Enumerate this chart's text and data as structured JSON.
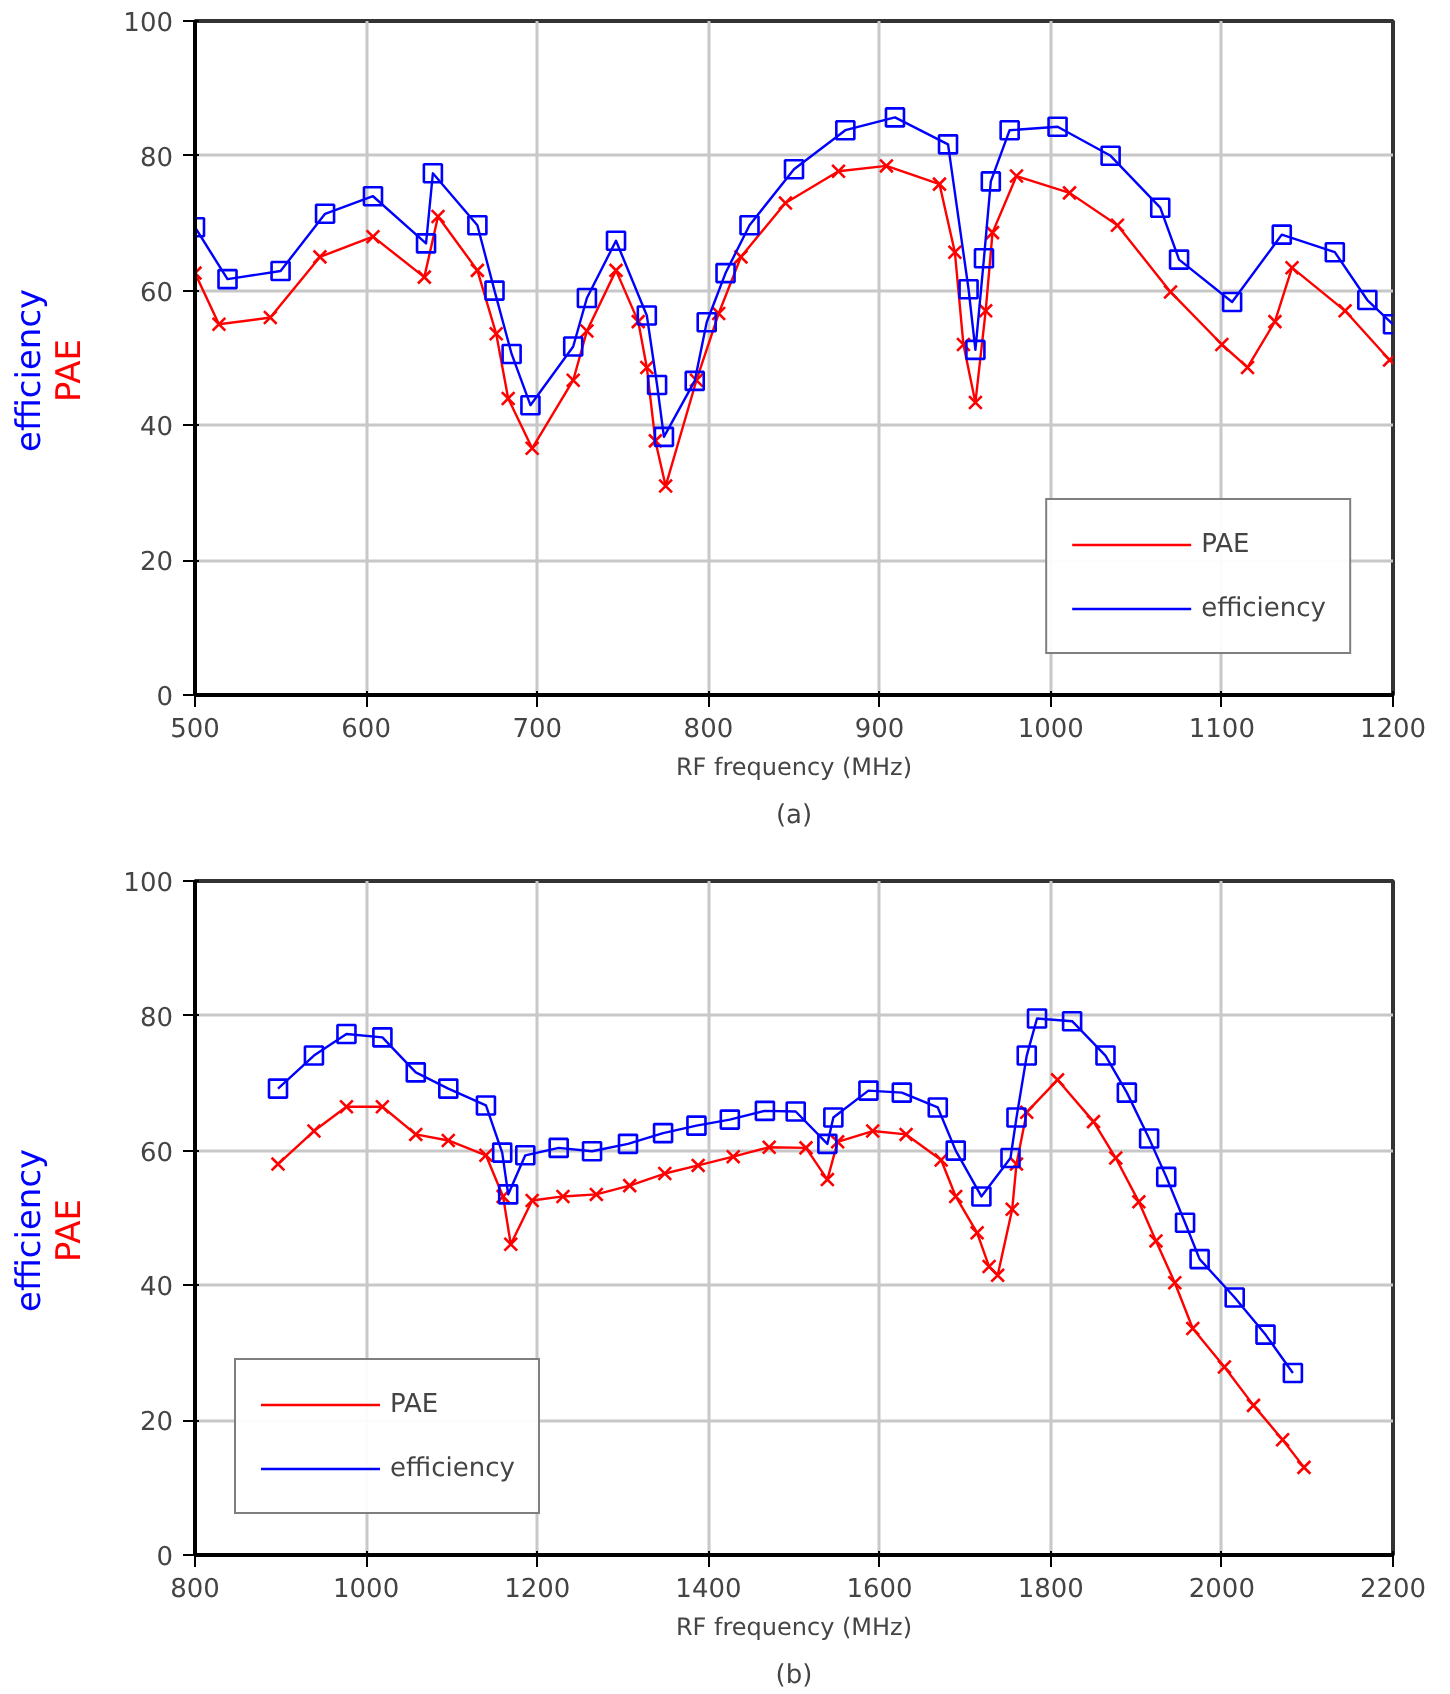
{
  "chart_data": [
    {
      "type": "line",
      "xlabel": "RF frequency (MHz)",
      "ylabel": "efficiency\nPAE",
      "annotations": [
        "(a)"
      ],
      "xlim": [
        500,
        1200
      ],
      "ylim": [
        0,
        100
      ],
      "xticks": [
        500,
        600,
        700,
        800,
        900,
        1000,
        1100,
        1200
      ],
      "yticks": [
        0,
        20,
        40,
        60,
        80,
        100
      ],
      "grid": true,
      "legend": "bottom right",
      "line_style": "solid",
      "series": [
        {
          "name": "PAE",
          "color": "#ff0000",
          "marker": "cross",
          "x": [
            500,
            514,
            544,
            573,
            604,
            634,
            642,
            665,
            676,
            683,
            697,
            721,
            729,
            746,
            759,
            764,
            769,
            775,
            793,
            806,
            819,
            845,
            876,
            904,
            935,
            944,
            949,
            956,
            962,
            966,
            980,
            1011,
            1039,
            1070,
            1100,
            1115,
            1131,
            1141,
            1172,
            1198
          ],
          "values": [
            62.6,
            55,
            56,
            65,
            68,
            62,
            71,
            63,
            53.6,
            44,
            36.6,
            46.7,
            54,
            63,
            55.4,
            48.6,
            37.7,
            31,
            46.7,
            56.6,
            65,
            73,
            77.7,
            78.5,
            75.8,
            65.7,
            52,
            43.4,
            57,
            68.6,
            77,
            74.5,
            69.7,
            59.8,
            52,
            48.6,
            55.4,
            63.4,
            57,
            49.7
          ]
        },
        {
          "name": "efficiency",
          "color": "#0000ff",
          "marker": "square",
          "x": [
            500,
            519,
            550,
            576,
            604,
            635,
            639,
            665,
            675,
            685,
            696,
            721,
            729,
            746,
            764,
            770,
            774,
            792,
            799,
            810,
            824,
            850,
            880,
            909,
            940,
            952,
            956,
            961,
            965,
            976,
            1004,
            1035,
            1064,
            1075,
            1106,
            1135,
            1166,
            1185,
            1200
          ],
          "values": [
            69.4,
            61.7,
            62.9,
            71.4,
            74,
            67,
            77.4,
            69.7,
            60,
            50.6,
            43,
            51.7,
            58.9,
            67.4,
            56.3,
            46,
            38.3,
            46.6,
            55.3,
            62.6,
            69.7,
            78,
            83.8,
            85.7,
            81.7,
            60.2,
            51.2,
            64.8,
            76.2,
            83.8,
            84.3,
            80,
            72.3,
            64.6,
            58.3,
            68.3,
            65.7,
            58.6,
            55
          ]
        }
      ]
    },
    {
      "type": "line",
      "xlabel": "RF frequency (MHz)",
      "ylabel": "efficiency\nPAE",
      "annotations": [
        "(b)"
      ],
      "xlim": [
        800,
        2200
      ],
      "ylim": [
        0,
        100
      ],
      "xticks": [
        800,
        1000,
        1200,
        1400,
        1600,
        1800,
        2000,
        2200
      ],
      "yticks": [
        0,
        20,
        40,
        60,
        80,
        100
      ],
      "grid": true,
      "legend": "bottom left",
      "line_style": "solid",
      "series": [
        {
          "name": "PAE",
          "color": "#ff0000",
          "marker": "cross",
          "x": [
            897,
            939,
            977,
            1019,
            1058,
            1096,
            1140,
            1160,
            1169,
            1194,
            1230,
            1269,
            1308,
            1349,
            1388,
            1429,
            1471,
            1514,
            1539,
            1551,
            1592,
            1631,
            1672,
            1689,
            1714,
            1728,
            1738,
            1755,
            1760,
            1772,
            1808,
            1850,
            1876,
            1903,
            1923,
            1945,
            1966,
            2003,
            2037,
            2071,
            2096
          ],
          "values": [
            58,
            62.9,
            66.5,
            66.5,
            62.4,
            61.5,
            59.3,
            53.2,
            46.1,
            52.6,
            53.2,
            53.5,
            54.8,
            56.6,
            57.8,
            59.1,
            60.5,
            60.4,
            55.7,
            61.3,
            62.9,
            62.4,
            58.6,
            53.2,
            47.8,
            42.8,
            41.5,
            51.3,
            58,
            65.7,
            70.5,
            64.3,
            58.9,
            52.4,
            46.6,
            40.4,
            33.6,
            27.9,
            22.2,
            17.1,
            13
          ]
        },
        {
          "name": "efficiency",
          "color": "#0000ff",
          "marker": "square",
          "x": [
            897,
            939,
            977,
            1019,
            1058,
            1096,
            1140,
            1159,
            1166,
            1186,
            1225,
            1264,
            1306,
            1347,
            1386,
            1425,
            1466,
            1502,
            1539,
            1546,
            1587,
            1626,
            1668,
            1689,
            1719,
            1753,
            1760,
            1772,
            1784,
            1825,
            1864,
            1889,
            1915,
            1935,
            1957,
            1974,
            2015,
            2051,
            2083
          ],
          "values": [
            69.2,
            74.1,
            77.3,
            76.8,
            71.6,
            69.2,
            66.7,
            59.7,
            53.5,
            59.3,
            60.4,
            59.9,
            61,
            62.6,
            63.7,
            64.6,
            65.9,
            65.8,
            61,
            64.9,
            68.9,
            68.6,
            66.4,
            60,
            53.2,
            58.9,
            64.9,
            74.1,
            79.6,
            79.2,
            74.1,
            68.6,
            61.8,
            56.1,
            49.3,
            43.9,
            38.2,
            32.7,
            27
          ]
        }
      ]
    }
  ]
}
